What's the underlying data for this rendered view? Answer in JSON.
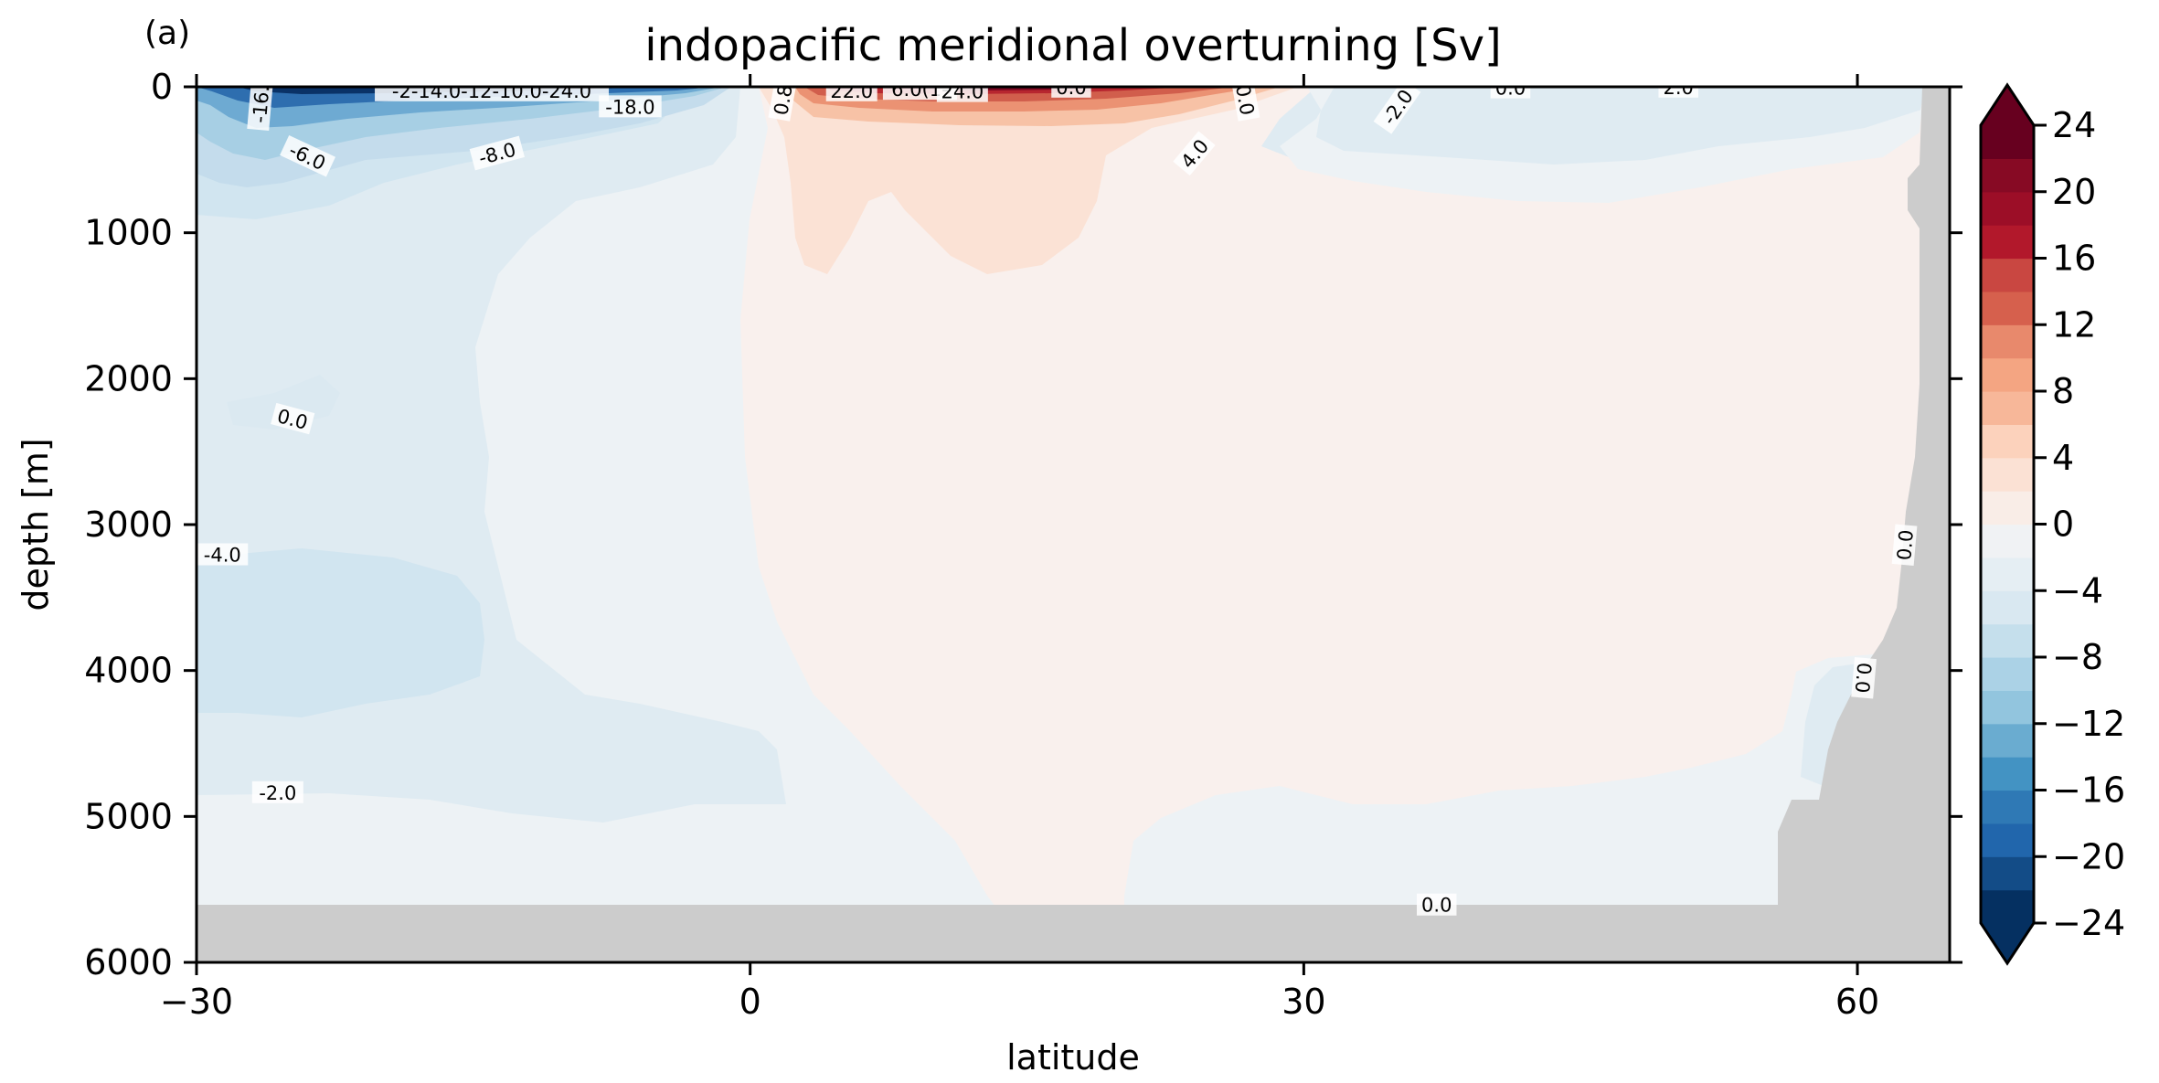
{
  "chart_data": {
    "type": "heatmap",
    "panel_label": "(a)",
    "title": "indopacific meridional overturning [Sv]",
    "xlabel": "latitude",
    "ylabel": "depth [m]",
    "xlim": [
      -30,
      65
    ],
    "ylim": [
      6000,
      0
    ],
    "x_ticks": [
      -30,
      0,
      30,
      60
    ],
    "x_tick_labels": [
      "−30",
      "0",
      "30",
      "60"
    ],
    "y_ticks": [
      0,
      1000,
      2000,
      3000,
      4000,
      5000,
      6000
    ],
    "y_tick_labels": [
      "0",
      "1000",
      "2000",
      "3000",
      "4000",
      "5000",
      "6000"
    ],
    "colormap": "RdBu_r",
    "color_levels": [
      -24,
      -22,
      -20,
      -18,
      -16,
      -14,
      -12,
      -10,
      -8,
      -6,
      -4,
      -2,
      0,
      2,
      4,
      6,
      8,
      10,
      12,
      14,
      16,
      18,
      20,
      22,
      24
    ],
    "colorbar_ticks": [
      24,
      20,
      16,
      12,
      8,
      4,
      0,
      -4,
      -8,
      -12,
      -16,
      -20,
      -24
    ],
    "colorbar_tick_labels": [
      "24",
      "20",
      "16",
      "12",
      "8",
      "4",
      "0",
      "−4",
      "−8",
      "−12",
      "−16",
      "−20",
      "−24"
    ],
    "colorbar_extend": "both",
    "land_color": "#cccccc",
    "contour_labels": [
      {
        "text": "-16.",
        "x": -26.5,
        "y": 120,
        "rot": -85
      },
      {
        "text": "-2-14.0-12-10.0-24.0",
        "x": -14,
        "y": 30,
        "rot": 0
      },
      {
        "text": "-18.0",
        "x": -6.5,
        "y": 140,
        "rot": 0
      },
      {
        "text": "-6.0",
        "x": -24,
        "y": 480,
        "rot": 25
      },
      {
        "text": "-8.0",
        "x": -13.7,
        "y": 460,
        "rot": -15
      },
      {
        "text": "0.0",
        "x": -24.8,
        "y": 2280,
        "rot": 15
      },
      {
        "text": "-4.0",
        "x": -28.6,
        "y": 3210,
        "rot": 0
      },
      {
        "text": "-2.0",
        "x": -25.6,
        "y": 4840,
        "rot": 0
      },
      {
        "text": "0.8",
        "x": 1.8,
        "y": 90,
        "rot": -80
      },
      {
        "text": "22.0",
        "x": 5.5,
        "y": 30,
        "rot": 0
      },
      {
        "text": "6.0(1-",
        "x": 9.2,
        "y": 20,
        "rot": 0
      },
      {
        "text": "24.0",
        "x": 11.5,
        "y": 35,
        "rot": 0
      },
      {
        "text": "0.0",
        "x": 17.4,
        "y": 5,
        "rot": 0
      },
      {
        "text": "0.0",
        "x": 26.8,
        "y": 90,
        "rot": 80
      },
      {
        "text": "4.0",
        "x": 24.1,
        "y": 460,
        "rot": -50
      },
      {
        "text": "-2.0",
        "x": 35.1,
        "y": 140,
        "rot": -55
      },
      {
        "text": "0.0",
        "x": 41.2,
        "y": 10,
        "rot": 0
      },
      {
        "text": "2.0",
        "x": 50.3,
        "y": 5,
        "rot": 0
      },
      {
        "text": "0.0",
        "x": 62.6,
        "y": 3140,
        "rot": -85
      },
      {
        "text": "0.0",
        "x": 60.3,
        "y": 4050,
        "rot": 95
      },
      {
        "text": "0.0",
        "x": 37.2,
        "y": 5610,
        "rot": 0
      }
    ]
  }
}
